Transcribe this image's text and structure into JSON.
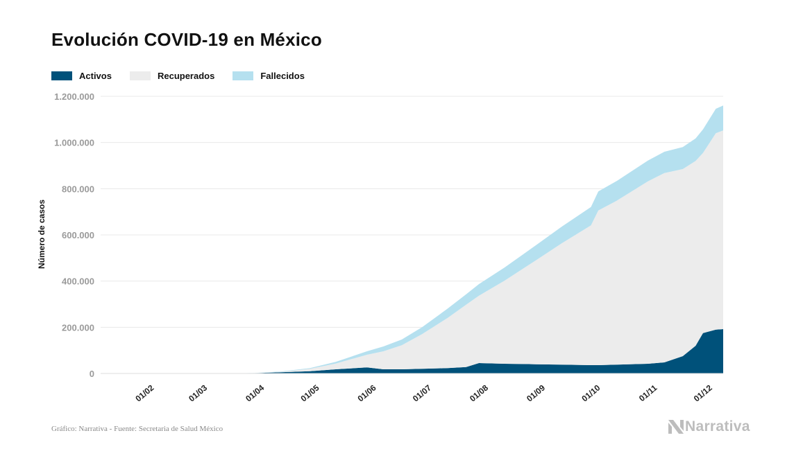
{
  "title": "Evolución COVID-19 en México",
  "source": "Gráfico: Narrativa - Fuente: Secretaria de Salud México",
  "logo": {
    "text": "Narrativa",
    "icon": "narrativa-n-logo"
  },
  "colors": {
    "activos": "#00517a",
    "recuperados": "#ececec",
    "fallecidos": "#b5e0ef",
    "grid": "#e8e8e8"
  },
  "chart_data": {
    "type": "area",
    "stacked": true,
    "title": "Evolución COVID-19 en México",
    "ylabel": "Número de casos",
    "xlabel": "",
    "ylim": [
      0,
      1200000
    ],
    "xlim": [
      "2020-01-08",
      "2020-12-12"
    ],
    "yticks": [
      0,
      200000,
      400000,
      600000,
      800000,
      1000000,
      1200000
    ],
    "ytick_labels": [
      "0",
      "200.000",
      "400.000",
      "600.000",
      "800.000",
      "1.000.000",
      "1.200.000"
    ],
    "xticks": [
      "2020-02-01",
      "2020-03-01",
      "2020-04-01",
      "2020-05-01",
      "2020-06-01",
      "2020-07-01",
      "2020-08-01",
      "2020-09-01",
      "2020-10-01",
      "2020-11-01",
      "2020-12-01"
    ],
    "xtick_labels": [
      "01/02",
      "01/03",
      "01/04",
      "01/05",
      "01/06",
      "01/07",
      "01/08",
      "01/09",
      "01/10",
      "01/11",
      "01/12"
    ],
    "legend_position": "top-left",
    "grid": true,
    "x": [
      "2020-03-20",
      "2020-04-01",
      "2020-04-15",
      "2020-05-01",
      "2020-05-15",
      "2020-06-01",
      "2020-06-10",
      "2020-06-20",
      "2020-07-01",
      "2020-07-15",
      "2020-07-25",
      "2020-08-01",
      "2020-08-15",
      "2020-09-01",
      "2020-09-15",
      "2020-10-01",
      "2020-10-05",
      "2020-10-15",
      "2020-11-01",
      "2020-11-10",
      "2020-11-20",
      "2020-11-27",
      "2020-12-01",
      "2020-12-08",
      "2020-12-12"
    ],
    "series": [
      {
        "name": "Activos",
        "values": [
          300,
          1500,
          5000,
          10000,
          18000,
          26000,
          18000,
          18000,
          20000,
          23000,
          28000,
          45000,
          42000,
          40000,
          38000,
          36000,
          36000,
          38000,
          42000,
          48000,
          75000,
          120000,
          175000,
          190000,
          192000
        ]
      },
      {
        "name": "Recuperados",
        "values": [
          100,
          300,
          2000,
          10000,
          25000,
          55000,
          78000,
          104000,
          150000,
          218000,
          270000,
          292000,
          360000,
          450000,
          525000,
          605000,
          670000,
          710000,
          790000,
          820000,
          810000,
          800000,
          780000,
          850000,
          860000
        ]
      },
      {
        "name": "Fallecidos",
        "values": [
          50,
          200,
          1000,
          3000,
          7000,
          15000,
          21000,
          25000,
          30000,
          40000,
          45000,
          50000,
          57000,
          65000,
          72000,
          80000,
          82000,
          85000,
          90000,
          92000,
          95000,
          98000,
          102000,
          106000,
          108000
        ]
      }
    ]
  }
}
